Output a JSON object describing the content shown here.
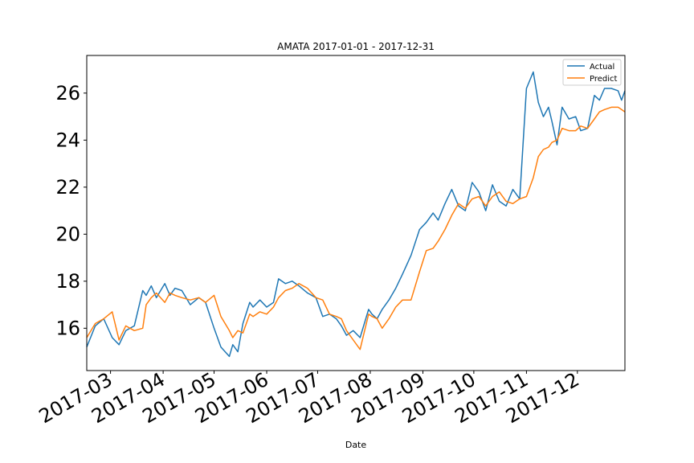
{
  "chart_data": {
    "type": "line",
    "title": "AMATA 2017-01-01 - 2017-12-31",
    "xlabel": "Date",
    "ylabel": "",
    "xlim": [
      "2017-02-15",
      "2017-12-29"
    ],
    "ylim": [
      14.2,
      27.6
    ],
    "x_ticks": [
      "2017-03-01",
      "2017-04-01",
      "2017-05-01",
      "2017-06-01",
      "2017-07-01",
      "2017-08-01",
      "2017-09-01",
      "2017-10-01",
      "2017-11-01",
      "2017-12-01"
    ],
    "x_tick_labels": [
      "2017-03",
      "2017-04",
      "2017-05",
      "2017-06",
      "2017-07",
      "2017-08",
      "2017-09",
      "2017-10",
      "2017-11",
      "2017-12"
    ],
    "y_ticks": [
      16,
      18,
      20,
      22,
      24,
      26
    ],
    "y_tick_labels": [
      "16",
      "18",
      "20",
      "22",
      "24",
      "26"
    ],
    "grid": false,
    "legend": "top-right",
    "colors": {
      "Actual": "#1f77b4",
      "Predict": "#ff7f0e"
    },
    "x": [
      "2017-02-15",
      "2017-02-20",
      "2017-02-25",
      "2017-03-02",
      "2017-03-06",
      "2017-03-10",
      "2017-03-15",
      "2017-03-20",
      "2017-03-22",
      "2017-03-25",
      "2017-03-28",
      "2017-04-02",
      "2017-04-05",
      "2017-04-08",
      "2017-04-12",
      "2017-04-17",
      "2017-04-22",
      "2017-04-26",
      "2017-05-01",
      "2017-05-05",
      "2017-05-10",
      "2017-05-12",
      "2017-05-15",
      "2017-05-18",
      "2017-05-22",
      "2017-05-24",
      "2017-05-28",
      "2017-06-01",
      "2017-06-05",
      "2017-06-08",
      "2017-06-12",
      "2017-06-16",
      "2017-06-20",
      "2017-06-25",
      "2017-06-30",
      "2017-07-04",
      "2017-07-08",
      "2017-07-12",
      "2017-07-15",
      "2017-07-18",
      "2017-07-22",
      "2017-07-26",
      "2017-07-31",
      "2017-08-02",
      "2017-08-05",
      "2017-08-08",
      "2017-08-12",
      "2017-08-16",
      "2017-08-20",
      "2017-08-25",
      "2017-08-30",
      "2017-09-03",
      "2017-09-07",
      "2017-09-10",
      "2017-09-14",
      "2017-09-18",
      "2017-09-22",
      "2017-09-26",
      "2017-09-30",
      "2017-10-04",
      "2017-10-08",
      "2017-10-12",
      "2017-10-16",
      "2017-10-20",
      "2017-10-24",
      "2017-10-28",
      "2017-11-01",
      "2017-11-05",
      "2017-11-08",
      "2017-11-11",
      "2017-11-14",
      "2017-11-16",
      "2017-11-19",
      "2017-11-22",
      "2017-11-26",
      "2017-11-30",
      "2017-12-03",
      "2017-12-07",
      "2017-12-11",
      "2017-12-14",
      "2017-12-17",
      "2017-12-21",
      "2017-12-25",
      "2017-12-27",
      "2017-12-29"
    ],
    "series": [
      {
        "name": "Actual",
        "values": [
          15.2,
          16.1,
          16.4,
          15.6,
          15.3,
          15.9,
          16.1,
          17.6,
          17.4,
          17.8,
          17.3,
          17.9,
          17.4,
          17.7,
          17.6,
          17.0,
          17.3,
          17.1,
          16.0,
          15.2,
          14.8,
          15.3,
          15.0,
          16.2,
          17.1,
          16.9,
          17.2,
          16.9,
          17.1,
          18.1,
          17.9,
          18.0,
          17.8,
          17.5,
          17.3,
          16.5,
          16.6,
          16.4,
          16.1,
          15.7,
          15.9,
          15.6,
          16.8,
          16.6,
          16.4,
          16.8,
          17.2,
          17.7,
          18.3,
          19.1,
          20.2,
          20.5,
          20.9,
          20.6,
          21.3,
          21.9,
          21.2,
          21.0,
          22.2,
          21.8,
          21.0,
          22.1,
          21.4,
          21.2,
          21.9,
          21.5,
          26.2,
          26.9,
          25.6,
          25.0,
          25.4,
          24.8,
          23.8,
          25.4,
          24.9,
          25.0,
          24.4,
          24.5,
          25.9,
          25.7,
          26.2,
          26.2,
          26.1,
          25.7,
          26.1
        ]
      },
      {
        "name": "Predict",
        "values": [
          15.6,
          16.2,
          16.4,
          16.7,
          15.5,
          16.1,
          15.9,
          16.0,
          17.0,
          17.3,
          17.5,
          17.1,
          17.5,
          17.4,
          17.3,
          17.2,
          17.3,
          17.1,
          17.4,
          16.5,
          15.9,
          15.6,
          15.9,
          15.8,
          16.6,
          16.5,
          16.7,
          16.6,
          16.9,
          17.3,
          17.6,
          17.7,
          17.9,
          17.7,
          17.3,
          17.2,
          16.6,
          16.5,
          16.4,
          15.9,
          15.5,
          15.1,
          16.6,
          16.5,
          16.4,
          16.0,
          16.4,
          16.9,
          17.2,
          17.2,
          18.4,
          19.3,
          19.4,
          19.7,
          20.2,
          20.8,
          21.3,
          21.1,
          21.5,
          21.6,
          21.2,
          21.6,
          21.8,
          21.4,
          21.3,
          21.5,
          21.6,
          22.4,
          23.3,
          23.6,
          23.7,
          23.9,
          24.0,
          24.5,
          24.4,
          24.4,
          24.6,
          24.5,
          24.9,
          25.2,
          25.3,
          25.4,
          25.4,
          25.3,
          25.2
        ]
      }
    ]
  }
}
